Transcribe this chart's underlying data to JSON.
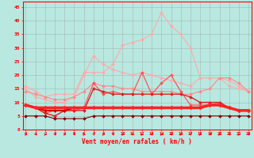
{
  "background_color": "#b8e8e0",
  "grid_color": "#999999",
  "xlabel": "Vent moyen/en rafales ( km/h )",
  "x": [
    0,
    1,
    2,
    3,
    4,
    5,
    6,
    7,
    8,
    9,
    10,
    11,
    12,
    13,
    14,
    15,
    16,
    17,
    18,
    19,
    20,
    21,
    22,
    23
  ],
  "lines": [
    {
      "color": "#ffaaaa",
      "linewidth": 0.8,
      "markersize": 2.0,
      "y": [
        16,
        14,
        12,
        13,
        13,
        13,
        21,
        21,
        21,
        24,
        31,
        32,
        33,
        35,
        43,
        38,
        35,
        30,
        19,
        19,
        19,
        16,
        15,
        14
      ]
    },
    {
      "color": "#ffaaaa",
      "linewidth": 0.8,
      "markersize": 2.0,
      "y": [
        15,
        12,
        11,
        10,
        10,
        12,
        20,
        27,
        24,
        22,
        21,
        20,
        21,
        20,
        19,
        18,
        17,
        16,
        19,
        19,
        19,
        18,
        16,
        14
      ]
    },
    {
      "color": "#ff8888",
      "linewidth": 0.8,
      "markersize": 2.0,
      "y": [
        14,
        13,
        12,
        11,
        11,
        12,
        14,
        17,
        16,
        16,
        15,
        15,
        14,
        14,
        14,
        14,
        13,
        13,
        14,
        15,
        19,
        19,
        17,
        14
      ]
    },
    {
      "color": "#ff5555",
      "linewidth": 0.9,
      "markersize": 2.0,
      "y": [
        9,
        8,
        6,
        7,
        7,
        7,
        8,
        17,
        13,
        14,
        13,
        13,
        21,
        13,
        17,
        20,
        14,
        9,
        9,
        9,
        10,
        8,
        7,
        7
      ]
    },
    {
      "color": "#dd2222",
      "linewidth": 1.0,
      "markersize": 2.0,
      "y": [
        9,
        8,
        6,
        5,
        7,
        7,
        7,
        15,
        14,
        13,
        13,
        13,
        13,
        13,
        13,
        13,
        13,
        12,
        10,
        10,
        10,
        8,
        7,
        7
      ]
    },
    {
      "color": "#cc0000",
      "linewidth": 1.5,
      "markersize": 2.0,
      "y": [
        9,
        8,
        7,
        7,
        7,
        8,
        8,
        8,
        8,
        8,
        8,
        8,
        8,
        8,
        8,
        8,
        8,
        8,
        8,
        9,
        9,
        8,
        7,
        7
      ]
    },
    {
      "color": "#ff2222",
      "linewidth": 2.5,
      "markersize": 2.5,
      "y": [
        9,
        8,
        8,
        8,
        8,
        8,
        8,
        8,
        8,
        8,
        8,
        8,
        8,
        8,
        8,
        8,
        8,
        8,
        8,
        9,
        9,
        8,
        7,
        7
      ]
    },
    {
      "color": "#880000",
      "linewidth": 0.8,
      "markersize": 2.0,
      "y": [
        5,
        5,
        5,
        4,
        4,
        4,
        4,
        5,
        5,
        5,
        5,
        5,
        5,
        5,
        5,
        5,
        5,
        5,
        5,
        5,
        5,
        5,
        5,
        5
      ]
    }
  ],
  "yticks": [
    0,
    5,
    10,
    15,
    20,
    25,
    30,
    35,
    40,
    45
  ],
  "ylim": [
    0,
    47
  ],
  "xlim": [
    -0.3,
    23.3
  ]
}
